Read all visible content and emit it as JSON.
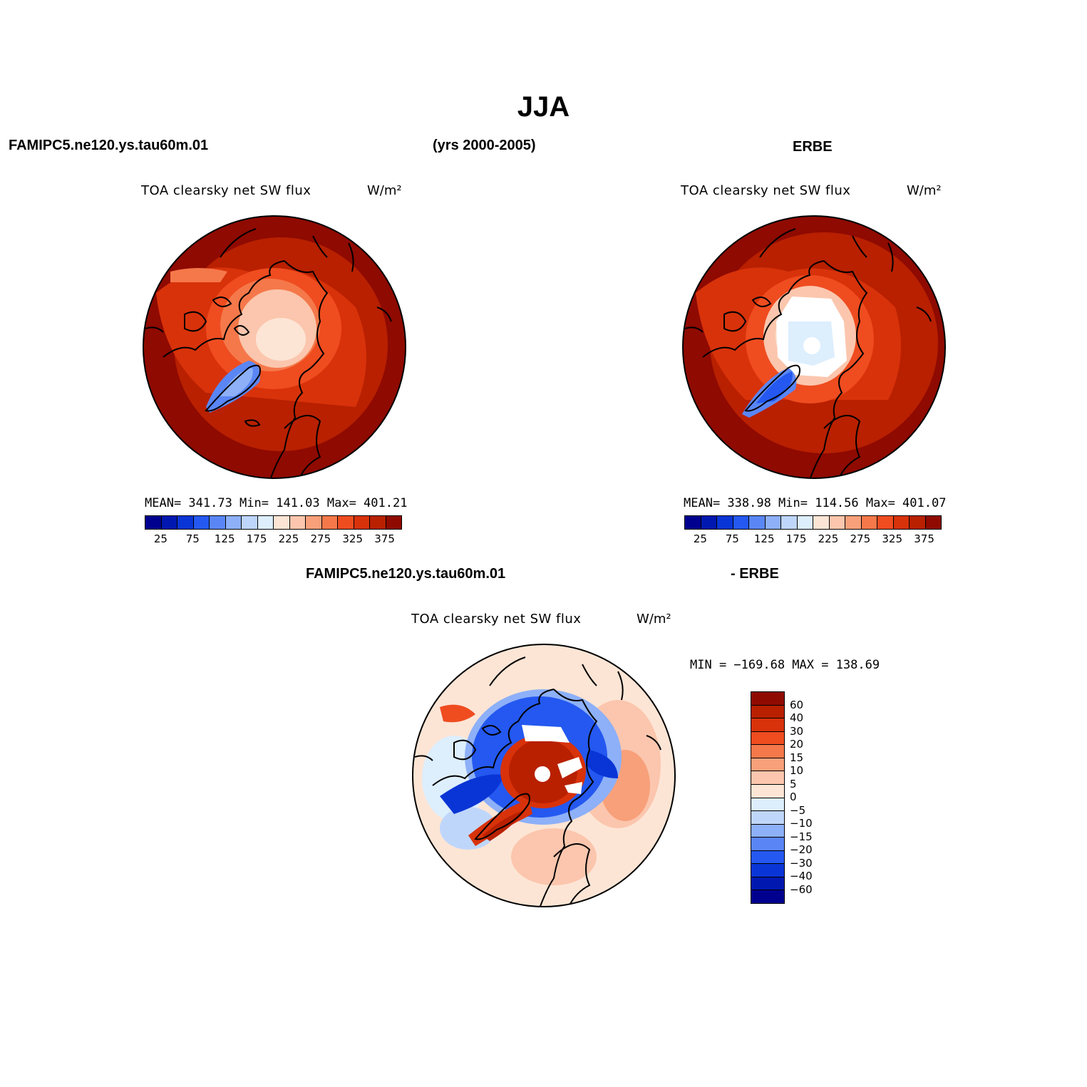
{
  "title": "JJA",
  "top_left_label": "FAMIPC5.ne120.ys.tau60m.01",
  "top_center_label": "(yrs 2000-2005)",
  "top_right_label": "ERBE",
  "panel_model": {
    "variable": "TOA clearsky net SW flux",
    "units": "W/m²",
    "stats": "MEAN= 341.73   Min= 141.03   Max= 401.21"
  },
  "panel_obs": {
    "variable": "TOA clearsky net SW flux",
    "units": "W/m²",
    "stats": "MEAN= 338.98   Min= 114.56   Max= 401.07"
  },
  "diff_left_label": "FAMIPC5.ne120.ys.tau60m.01",
  "diff_right_label": "- ERBE",
  "panel_diff": {
    "variable": "TOA clearsky net SW flux",
    "units": "W/m²",
    "stats": "MIN = −169.68 MAX = 138.69"
  },
  "abs_colorbar": {
    "colors": [
      "#00008f",
      "#0018b0",
      "#0a35d6",
      "#2458f0",
      "#5a86f5",
      "#8db0f8",
      "#bfd6fb",
      "#ddeefd",
      "#fde5d5",
      "#fbc6ad",
      "#f8a07a",
      "#f5784a",
      "#ef4c20",
      "#d8320a",
      "#b82000",
      "#8f0a00"
    ],
    "tick_labels": [
      "25",
      "75",
      "125",
      "175",
      "225",
      "275",
      "325",
      "375"
    ]
  },
  "diff_colorbar": {
    "colors": [
      "#8f0a00",
      "#b82000",
      "#d8320a",
      "#ef4c20",
      "#f5784a",
      "#f8a07a",
      "#fbc6ad",
      "#fde5d5",
      "#ddeefd",
      "#bfd6fb",
      "#8db0f8",
      "#5a86f5",
      "#2458f0",
      "#0a35d6",
      "#0018b0",
      "#00008f"
    ],
    "tick_labels": [
      "60",
      "40",
      "30",
      "20",
      "15",
      "10",
      "5",
      "0",
      "−5",
      "−10",
      "−15",
      "−20",
      "−30",
      "−40",
      "−60"
    ]
  }
}
